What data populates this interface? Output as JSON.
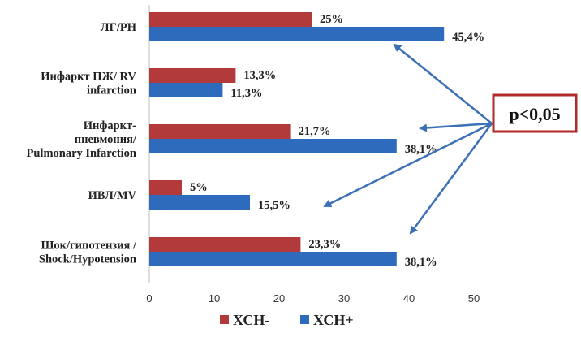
{
  "chart_data": {
    "type": "bar",
    "orientation": "horizontal",
    "categories": [
      [
        "ЛГ/PH"
      ],
      [
        "Инфаркт ПЖ/ RV",
        "infarction"
      ],
      [
        "Инфаркт-",
        "пневмония/",
        "Pulmonary Infarction"
      ],
      [
        "ИВЛ/MV"
      ],
      [
        "Шок/гипотензия /",
        "Shock/Hypotension"
      ]
    ],
    "series": [
      {
        "name": "ХСН-",
        "color": "#b23a3a",
        "values": [
          25,
          13.3,
          21.7,
          5,
          23.3
        ],
        "labels": [
          "25%",
          "13,3%",
          "21,7%",
          "5%",
          "23,3%"
        ]
      },
      {
        "name": "ХСН+",
        "color": "#2e6bbd",
        "values": [
          45.4,
          11.3,
          38.1,
          15.5,
          38.1
        ],
        "labels": [
          "45,4%",
          "11,3%",
          "38,1%",
          "15,5%",
          "38,1%"
        ]
      }
    ],
    "xlim": [
      0,
      50
    ],
    "xticks": [
      "0",
      "10",
      "20",
      "30",
      "40",
      "50"
    ],
    "legend_position": "bottom",
    "annotation": {
      "text": "p<0,05",
      "arrow_targets": [
        "ЛГ/PH",
        "Инфаркт-пневмония/Pulmonary Infarction",
        "ИВЛ/MV",
        "Шок/гипотензия / Shock/Hypotension"
      ]
    },
    "arrow_color": "#3b6fb6",
    "annotation_border_color": "#b02828"
  }
}
